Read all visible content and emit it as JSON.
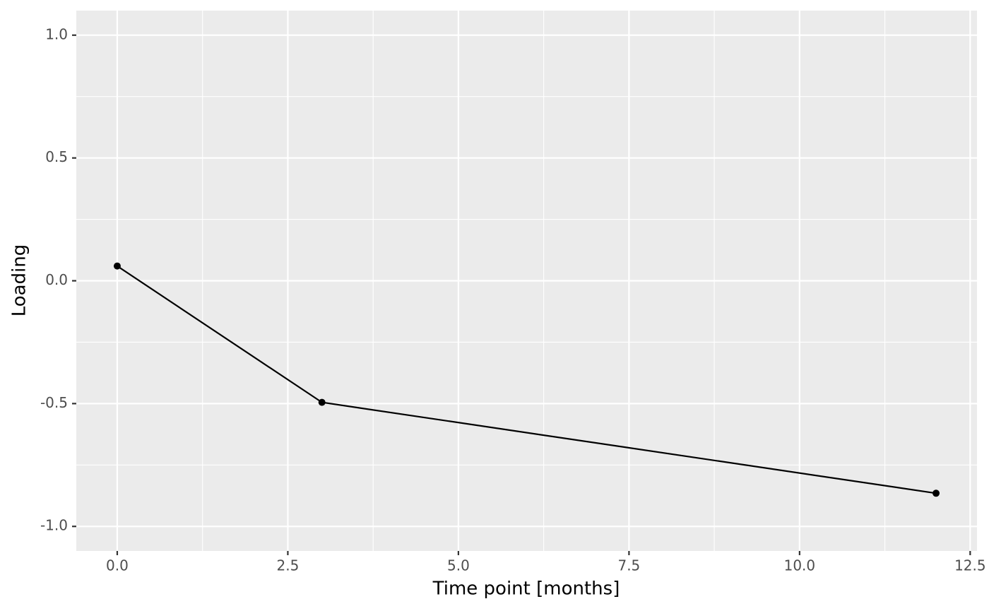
{
  "chart_data": {
    "type": "line",
    "x": [
      0,
      3,
      12
    ],
    "values": [
      0.06,
      -0.495,
      -0.865
    ],
    "color": "#000000",
    "xlabel": "Time point [months]",
    "ylabel": "Loading",
    "xlim": [
      -0.6,
      12.6
    ],
    "ylim": [
      -1.1,
      1.1
    ],
    "xticks": [
      {
        "value": 0,
        "label": "0.0"
      },
      2.5,
      {
        "value": 5,
        "label": "5.0"
      },
      7.5,
      {
        "value": 10,
        "label": "10.0"
      },
      12.5
    ],
    "yticks": [
      {
        "value": -1,
        "label": "-1.0"
      },
      -0.5,
      {
        "value": 0,
        "label": "0.0"
      },
      0.5,
      {
        "value": 1,
        "label": "1.0"
      }
    ],
    "grid": true,
    "minor_grid": true
  }
}
